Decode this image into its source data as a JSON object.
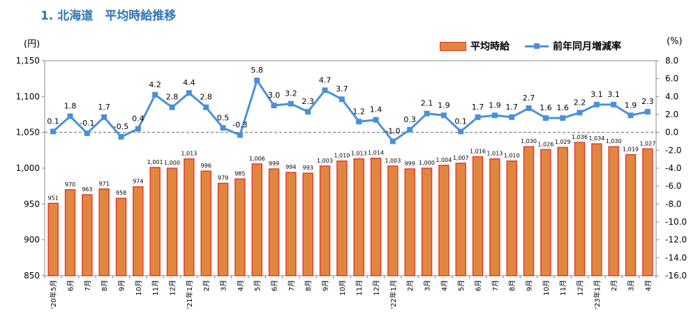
{
  "title": "1.  北海道　平均時給推移",
  "units": {
    "left": "(円)",
    "right": "(%)"
  },
  "legend": {
    "bar": "平均時給",
    "line": "前年同月増減率"
  },
  "colors": {
    "bar_fill": "#E0873F",
    "bar_stroke": "#E8332A",
    "line": "#4A90D9",
    "title": "#2E75B6"
  },
  "chart_data": {
    "type": "bar+line",
    "categories": [
      "'20年5月",
      "6月",
      "7月",
      "8月",
      "9月",
      "10月",
      "11月",
      "12月",
      "'21年1月",
      "2月",
      "3月",
      "4月",
      "5月",
      "6月",
      "7月",
      "8月",
      "9月",
      "10月",
      "11月",
      "12月",
      "'22年1月",
      "2月",
      "3月",
      "4月",
      "5月",
      "6月",
      "7月",
      "8月",
      "9月",
      "10月",
      "11月",
      "12月",
      "'23年1月",
      "2月",
      "3月",
      "4月"
    ],
    "series": [
      {
        "name": "平均時給",
        "axis": "left",
        "type": "bar",
        "values": [
          951,
          970,
          963,
          971,
          958,
          974,
          1001,
          1000,
          1013,
          996,
          979,
          985,
          1006,
          999,
          994,
          993,
          1003,
          1010,
          1013,
          1014,
          1003,
          999,
          1000,
          1004,
          1007,
          1016,
          1013,
          1010,
          1030,
          1026,
          1029,
          1036,
          1034,
          1030,
          1019,
          1027
        ]
      },
      {
        "name": "前年同月増減率",
        "axis": "right",
        "type": "line",
        "values": [
          0.1,
          1.8,
          -0.1,
          1.7,
          -0.5,
          0.4,
          4.2,
          2.8,
          4.4,
          2.8,
          0.5,
          -0.3,
          5.8,
          3.0,
          3.2,
          2.3,
          4.7,
          3.7,
          1.2,
          1.4,
          -1.0,
          0.3,
          2.1,
          1.9,
          0.1,
          1.7,
          1.9,
          1.7,
          2.7,
          1.6,
          1.6,
          2.2,
          3.1,
          3.1,
          1.9,
          2.3
        ]
      }
    ],
    "bar_labels": [
      "951",
      "970",
      "963",
      "971",
      "958",
      "974",
      "1,001",
      "1,000",
      "1,013",
      "996",
      "979",
      "985",
      "1,006",
      "999",
      "994",
      "993",
      "1,003",
      "1,010",
      "1,013",
      "1,014",
      "1,003",
      "999",
      "1,000",
      "1,004",
      "1,007",
      "1,016",
      "1,013",
      "1,010",
      "1,030",
      "1,026",
      "1,029",
      "1,036",
      "1,034",
      "1,030",
      "1,019",
      "1,027"
    ],
    "line_labels": [
      "0.1",
      "1.8",
      "-0.1",
      "1.7",
      "-0.5",
      "0.4",
      "4.2",
      "2.8",
      "4.4",
      "2.8",
      "0.5",
      "-0.3",
      "5.8",
      "3.0",
      "3.2",
      "2.3",
      "4.7",
      "3.7",
      "1.2",
      "1.4",
      "-1.0",
      "0.3",
      "2.1",
      "1.9",
      "0.1",
      "1.7",
      "1.9",
      "1.7",
      "2.7",
      "1.6",
      "1.6",
      "2.2",
      "3.1",
      "3.1",
      "1.9",
      "2.3"
    ],
    "y_left": {
      "min": 850,
      "max": 1150,
      "ticks": [
        "850",
        "900",
        "950",
        "1,000",
        "1,050",
        "1,100",
        "1,150"
      ]
    },
    "y_right": {
      "min": -16.0,
      "max": 8.0,
      "ticks": [
        "-16.0",
        "-14.0",
        "-12.0",
        "-10.0",
        "-8.0",
        "-6.0",
        "-4.0",
        "-2.0",
        "0.0",
        "2.0",
        "4.0",
        "6.0",
        "8.0"
      ]
    },
    "zero_line": "dashed"
  }
}
